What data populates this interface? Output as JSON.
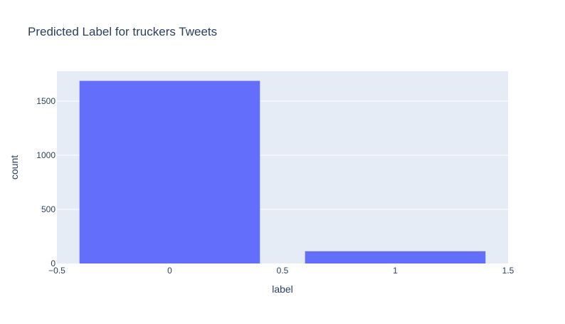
{
  "chart_data": {
    "type": "bar",
    "title": "Predicted Label for truckers Tweets",
    "xlabel": "label",
    "ylabel": "count",
    "x": [
      0,
      1
    ],
    "values": [
      1686,
      113
    ],
    "bar_width": 0.8,
    "xlim": [
      -0.5,
      1.5
    ],
    "ylim": [
      0,
      1775
    ],
    "xticks": [
      -0.5,
      0,
      0.5,
      1,
      1.5
    ],
    "xtick_labels": [
      "−0.5",
      "0",
      "0.5",
      "1",
      "1.5"
    ],
    "yticks": [
      0,
      500,
      1000,
      1500
    ],
    "ytick_labels": [
      "0",
      "500",
      "1000",
      "1500"
    ],
    "grid": true,
    "legend": "none",
    "colors": {
      "bar": "#636efa",
      "plot_background": "#e5ecf6",
      "grid": "#ffffff",
      "text": "#2a3f5f"
    }
  }
}
